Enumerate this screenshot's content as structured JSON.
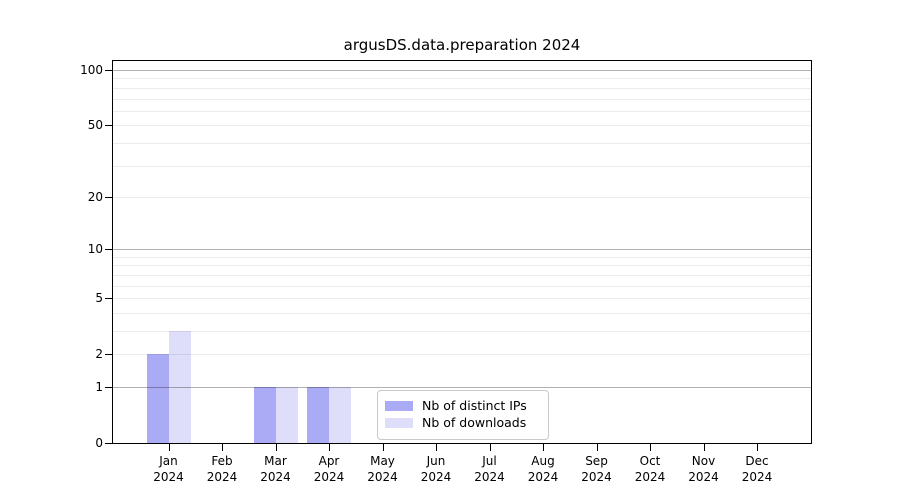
{
  "chart_data": {
    "type": "bar",
    "title": "argusDS.data.preparation 2024",
    "categories": [
      "Jan",
      "Feb",
      "Mar",
      "Apr",
      "May",
      "Jun",
      "Jul",
      "Aug",
      "Sep",
      "Oct",
      "Nov",
      "Dec"
    ],
    "x_tick_labels": [
      [
        "Jan",
        "2024"
      ],
      [
        "Feb",
        "2024"
      ],
      [
        "Mar",
        "2024"
      ],
      [
        "Apr",
        "2024"
      ],
      [
        "May",
        "2024"
      ],
      [
        "Jun",
        "2024"
      ],
      [
        "Jul",
        "2024"
      ],
      [
        "Aug",
        "2024"
      ],
      [
        "Sep",
        "2024"
      ],
      [
        "Oct",
        "2024"
      ],
      [
        "Nov",
        "2024"
      ],
      [
        "Dec",
        "2024"
      ]
    ],
    "series": [
      {
        "name": "Nb of distinct IPs",
        "color": "#aaaaf5",
        "values": [
          2,
          0,
          1,
          1,
          0,
          0,
          0,
          0,
          0,
          0,
          0,
          0
        ]
      },
      {
        "name": "Nb of downloads",
        "color": "#dedefa",
        "values": [
          3,
          0,
          1,
          1,
          0,
          0,
          0,
          0,
          0,
          0,
          0,
          0
        ]
      }
    ],
    "y_axis": {
      "scale": "log1p",
      "tick_values": [
        0,
        1,
        2,
        5,
        10,
        20,
        50,
        100
      ],
      "tick_labels": [
        "0",
        "1",
        "2",
        "5",
        "10",
        "20",
        "50",
        "100"
      ],
      "max": 112,
      "major_gridlines": [
        1,
        10,
        100
      ],
      "minor_gridlines": [
        2,
        3,
        4,
        5,
        6,
        7,
        8,
        9,
        20,
        30,
        40,
        50,
        60,
        70,
        80,
        90
      ]
    },
    "legend": {
      "position": "bottom-center"
    },
    "grid": true
  },
  "colors": {
    "background": "#ffffff",
    "spine": "#000000",
    "major_grid": "rgba(0,0,0,0.30)",
    "minor_grid": "rgba(0,0,0,0.08)",
    "legend_border": "#c9c9c9"
  }
}
